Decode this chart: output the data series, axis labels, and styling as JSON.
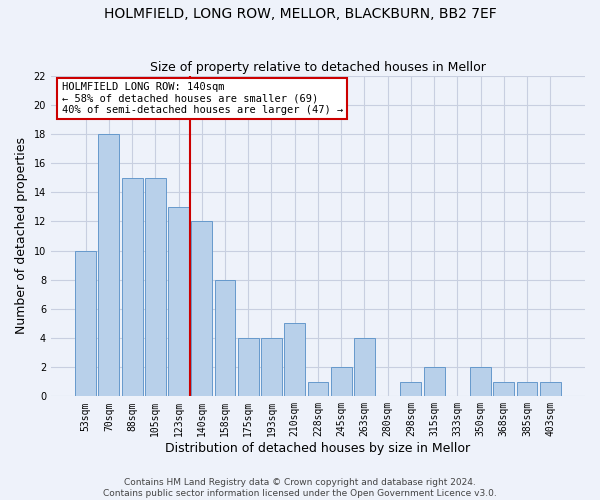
{
  "title": "HOLMFIELD, LONG ROW, MELLOR, BLACKBURN, BB2 7EF",
  "subtitle": "Size of property relative to detached houses in Mellor",
  "xlabel": "Distribution of detached houses by size in Mellor",
  "ylabel": "Number of detached properties",
  "categories": [
    "53sqm",
    "70sqm",
    "88sqm",
    "105sqm",
    "123sqm",
    "140sqm",
    "158sqm",
    "175sqm",
    "193sqm",
    "210sqm",
    "228sqm",
    "245sqm",
    "263sqm",
    "280sqm",
    "298sqm",
    "315sqm",
    "333sqm",
    "350sqm",
    "368sqm",
    "385sqm",
    "403sqm"
  ],
  "values": [
    10,
    18,
    15,
    15,
    13,
    12,
    8,
    4,
    4,
    5,
    1,
    2,
    4,
    0,
    1,
    2,
    0,
    2,
    1,
    1,
    1
  ],
  "bar_color": "#b8d0ea",
  "bar_edge_color": "#6699cc",
  "marker_index": 5,
  "marker_color": "#cc0000",
  "annotation_text": "HOLMFIELD LONG ROW: 140sqm\n← 58% of detached houses are smaller (69)\n40% of semi-detached houses are larger (47) →",
  "annotation_box_color": "#ffffff",
  "annotation_box_edge": "#cc0000",
  "ylim": [
    0,
    22
  ],
  "yticks": [
    0,
    2,
    4,
    6,
    8,
    10,
    12,
    14,
    16,
    18,
    20,
    22
  ],
  "grid_color": "#c8cfe0",
  "bg_color": "#eef2fa",
  "footer_line1": "Contains HM Land Registry data © Crown copyright and database right 2024.",
  "footer_line2": "Contains public sector information licensed under the Open Government Licence v3.0.",
  "title_fontsize": 10,
  "subtitle_fontsize": 9,
  "ylabel_fontsize": 9,
  "xlabel_fontsize": 9,
  "tick_fontsize": 7,
  "annot_fontsize": 7.5,
  "footer_fontsize": 6.5
}
